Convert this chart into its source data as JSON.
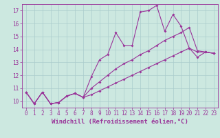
{
  "xlabel": "Windchill (Refroidissement éolien,°C)",
  "background_color": "#cce8e0",
  "grid_color": "#aacccc",
  "line_color": "#993399",
  "xlim": [
    -0.5,
    23.5
  ],
  "ylim": [
    9.5,
    17.5
  ],
  "xticks": [
    0,
    1,
    2,
    3,
    4,
    5,
    6,
    7,
    8,
    9,
    10,
    11,
    12,
    13,
    14,
    15,
    16,
    17,
    18,
    19,
    20,
    21,
    22,
    23
  ],
  "yticks": [
    10,
    11,
    12,
    13,
    14,
    15,
    16,
    17
  ],
  "line1_y": [
    10.7,
    9.8,
    10.7,
    9.8,
    9.9,
    10.4,
    10.6,
    10.3,
    11.9,
    13.2,
    13.6,
    15.3,
    14.3,
    14.3,
    16.9,
    17.0,
    17.4,
    15.4,
    16.7,
    15.8,
    14.1,
    13.4,
    13.8,
    13.7
  ],
  "line2_y": [
    10.7,
    9.8,
    10.7,
    9.8,
    9.9,
    10.4,
    10.6,
    10.3,
    11.0,
    11.5,
    12.0,
    12.5,
    12.9,
    13.2,
    13.6,
    13.9,
    14.3,
    14.7,
    15.0,
    15.3,
    15.7,
    13.9,
    13.8,
    13.7
  ],
  "line3_y": [
    10.7,
    9.8,
    10.7,
    9.8,
    9.9,
    10.4,
    10.6,
    10.3,
    10.5,
    10.8,
    11.1,
    11.4,
    11.7,
    12.0,
    12.3,
    12.6,
    12.9,
    13.2,
    13.5,
    13.8,
    14.1,
    13.8,
    13.8,
    13.7
  ],
  "marker": "D",
  "markersize": 2.0,
  "linewidth": 0.8,
  "tick_fontsize": 5.5,
  "label_fontsize": 6.5
}
